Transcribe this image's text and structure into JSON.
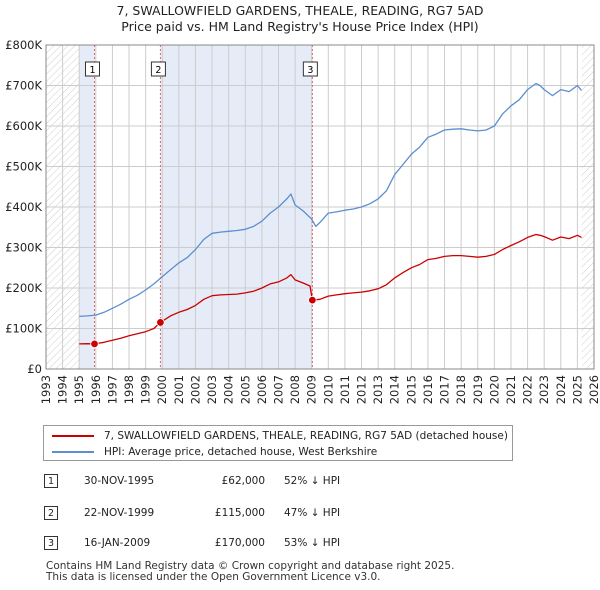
{
  "title_line1": "7, SWALLOWFIELD GARDENS, THEALE, READING, RG7 5AD",
  "title_line2": "Price paid vs. HM Land Registry's House Price Index (HPI)",
  "colors": {
    "price_paid": "#cc0000",
    "hpi": "#5b8fd0",
    "shade": "#e6ecf7",
    "grid": "#cccccc",
    "marker_line": "#e06666"
  },
  "legend": {
    "price_paid_label": "7, SWALLOWFIELD GARDENS, THEALE, READING, RG7 5AD (detached house)",
    "hpi_label": "HPI: Average price, detached house, West Berkshire"
  },
  "sales": [
    {
      "num": "1",
      "date": "30-NOV-1995",
      "price": "£62,000",
      "hpi": "52% ↓ HPI"
    },
    {
      "num": "2",
      "date": "22-NOV-1999",
      "price": "£115,000",
      "hpi": "47% ↓ HPI"
    },
    {
      "num": "3",
      "date": "16-JAN-2009",
      "price": "£170,000",
      "hpi": "53% ↓ HPI"
    }
  ],
  "footer_line1": "Contains HM Land Registry data © Crown copyright and database right 2025.",
  "footer_line2": "This data is licensed under the Open Government Licence v3.0.",
  "chart_data": {
    "type": "line",
    "title": "7, SWALLOWFIELD GARDENS, THEALE, READING, RG7 5AD",
    "subtitle": "Price paid vs. HM Land Registry's House Price Index (HPI)",
    "xlabel": "",
    "ylabel": "",
    "xlim": [
      1993,
      2026
    ],
    "ylim": [
      0,
      800000
    ],
    "x_ticks": [
      1993,
      1994,
      1995,
      1996,
      1997,
      1998,
      1999,
      2000,
      2001,
      2002,
      2003,
      2004,
      2005,
      2006,
      2007,
      2008,
      2009,
      2010,
      2011,
      2012,
      2013,
      2014,
      2015,
      2016,
      2017,
      2018,
      2019,
      2020,
      2021,
      2022,
      2023,
      2024,
      2025,
      2026
    ],
    "y_ticks": [
      {
        "value": 0,
        "label": "£0"
      },
      {
        "value": 100000,
        "label": "£100K"
      },
      {
        "value": 200000,
        "label": "£200K"
      },
      {
        "value": 300000,
        "label": "£300K"
      },
      {
        "value": 400000,
        "label": "£400K"
      },
      {
        "value": 500000,
        "label": "£500K"
      },
      {
        "value": 600000,
        "label": "£600K"
      },
      {
        "value": 700000,
        "label": "£700K"
      },
      {
        "value": 800000,
        "label": "£800K"
      }
    ],
    "grid": true,
    "data_range": [
      1995.0,
      2025.25
    ],
    "series": [
      {
        "name": "HPI: Average price, detached house, West Berkshire",
        "x": [
          1995.0,
          1995.5,
          1996.0,
          1996.5,
          1997.0,
          1997.5,
          1998.0,
          1998.5,
          1999.0,
          1999.5,
          2000.0,
          2000.5,
          2001.0,
          2001.5,
          2002.0,
          2002.5,
          2003.0,
          2003.5,
          2004.0,
          2004.5,
          2005.0,
          2005.5,
          2006.0,
          2006.5,
          2007.0,
          2007.5,
          2007.75,
          2008.0,
          2008.5,
          2009.0,
          2009.25,
          2009.5,
          2010.0,
          2010.5,
          2011.0,
          2011.5,
          2012.0,
          2012.5,
          2013.0,
          2013.5,
          2014.0,
          2014.5,
          2015.0,
          2015.5,
          2016.0,
          2016.5,
          2017.0,
          2017.5,
          2018.0,
          2018.5,
          2019.0,
          2019.5,
          2020.0,
          2020.5,
          2021.0,
          2021.5,
          2022.0,
          2022.5,
          2022.75,
          2023.0,
          2023.5,
          2024.0,
          2024.5,
          2025.0,
          2025.25
        ],
        "values": [
          130000,
          131000,
          133000,
          140000,
          150000,
          160000,
          172000,
          182000,
          195000,
          210000,
          228000,
          245000,
          262000,
          275000,
          295000,
          320000,
          335000,
          338000,
          340000,
          342000,
          345000,
          352000,
          365000,
          385000,
          400000,
          420000,
          432000,
          405000,
          390000,
          370000,
          352000,
          362000,
          385000,
          388000,
          392000,
          395000,
          400000,
          408000,
          420000,
          440000,
          480000,
          505000,
          530000,
          548000,
          572000,
          580000,
          590000,
          592000,
          593000,
          590000,
          588000,
          590000,
          600000,
          630000,
          650000,
          665000,
          690000,
          705000,
          700000,
          690000,
          675000,
          690000,
          685000,
          700000,
          688000
        ]
      },
      {
        "name": "7, SWALLOWFIELD GARDENS, THEALE, READING, RG7 5AD (detached house)",
        "x": [
          1995.0,
          1995.5,
          1995.92,
          1996.5,
          1997.0,
          1997.5,
          1998.0,
          1998.5,
          1999.0,
          1999.5,
          1999.89,
          2000.5,
          2001.0,
          2001.5,
          2002.0,
          2002.5,
          2003.0,
          2003.5,
          2004.0,
          2004.5,
          2005.0,
          2005.5,
          2006.0,
          2006.5,
          2007.0,
          2007.5,
          2007.75,
          2008.0,
          2008.5,
          2008.9,
          2009.04,
          2009.5,
          2010.0,
          2010.5,
          2011.0,
          2011.5,
          2012.0,
          2012.5,
          2013.0,
          2013.5,
          2014.0,
          2014.5,
          2015.0,
          2015.5,
          2016.0,
          2016.5,
          2017.0,
          2017.5,
          2018.0,
          2018.5,
          2019.0,
          2019.5,
          2020.0,
          2020.5,
          2021.0,
          2021.5,
          2022.0,
          2022.5,
          2022.75,
          2023.0,
          2023.5,
          2024.0,
          2024.5,
          2025.0,
          2025.25
        ],
        "values": [
          62000,
          62500,
          62000,
          66000,
          71000,
          76000,
          82000,
          87000,
          92000,
          100000,
          115000,
          131000,
          140000,
          147000,
          157000,
          172000,
          181000,
          183000,
          184000,
          185000,
          188000,
          192000,
          200000,
          210000,
          215000,
          225000,
          233000,
          220000,
          212000,
          205000,
          170000,
          172000,
          180000,
          183000,
          186000,
          188000,
          190000,
          193000,
          198000,
          208000,
          225000,
          238000,
          250000,
          258000,
          270000,
          273000,
          278000,
          280000,
          280000,
          278000,
          276000,
          278000,
          283000,
          295000,
          305000,
          314000,
          325000,
          332000,
          330000,
          327000,
          318000,
          326000,
          322000,
          330000,
          325000
        ]
      }
    ],
    "markers": [
      {
        "label": "1",
        "x": 1995.92,
        "value": 62000
      },
      {
        "label": "2",
        "x": 1999.89,
        "value": 115000
      },
      {
        "label": "3",
        "x": 2009.04,
        "value": 170000
      }
    ]
  }
}
